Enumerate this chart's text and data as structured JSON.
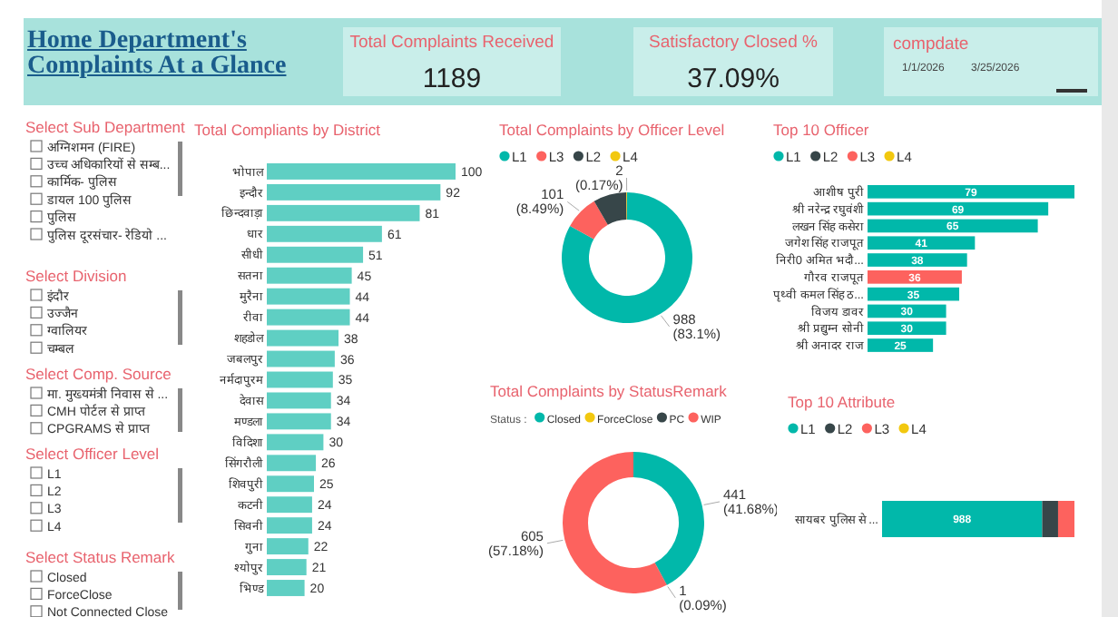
{
  "chart_data": [
    {
      "type": "other",
      "title": "Home Department's Complaints  At a Glance"
    },
    {
      "type": "other",
      "title": "Total Complaints Received",
      "annotations": [
        "1189"
      ]
    },
    {
      "type": "other",
      "title": "Satisfactory Closed %",
      "annotations": [
        "37.09%"
      ]
    },
    {
      "type": "other",
      "title": "compdate",
      "annotations": [
        "1/1/2026",
        "3/25/2026"
      ]
    },
    {
      "type": "other",
      "title": "Select Sub Department",
      "annotations": [
        "अग्निशमन (FIRE)",
        "उच्च अधिकारियों से सम्ब...",
        "कार्मिक- पुलिस",
        "डायल 100 पुलिस",
        "पुलिस",
        "पुलिस दूरसंचार- रेडियो ..."
      ]
    },
    {
      "type": "other",
      "title": "Select Division",
      "annotations": [
        "इंदौर",
        "उज्जैन",
        "ग्वालियर",
        "चम्बल"
      ]
    },
    {
      "type": "other",
      "title": "Select Comp. Source",
      "annotations": [
        "मा. मुख्यमंत्री निवास से ...",
        "CMH पोर्टल से प्राप्त",
        "CPGRAMS से प्राप्त"
      ]
    },
    {
      "type": "other",
      "title": "Select Officer Level",
      "annotations": [
        "L1",
        "L2",
        "L3",
        "L4"
      ]
    },
    {
      "type": "other",
      "title": "Select Status Remark",
      "annotations": [
        "Closed",
        "ForceClose",
        "Not Connected Close"
      ]
    },
    {
      "type": "bar",
      "orientation": "horizontal",
      "title": "Total Compliants by District",
      "data_labels": true,
      "categories": [
        "भोपाल",
        "इन्दौर",
        "छिन्दवाड़ा",
        "धार",
        "सीधी",
        "सतना",
        "मुरैना",
        "रीवा",
        "शहडोल",
        "जबलपुर",
        "नर्मदापुरम",
        "देवास",
        "मण्डला",
        "विदिशा",
        "सिंगरौली",
        "शिवपुरी",
        "कटनी",
        "सिवनी",
        "गुना",
        "श्योपुर",
        "भिण्ड"
      ],
      "series": [
        {
          "color": "#5fcfc3",
          "values": [
            100,
            92,
            81,
            61,
            51,
            45,
            44,
            44,
            38,
            36,
            35,
            34,
            34,
            30,
            26,
            25,
            24,
            24,
            22,
            21,
            20
          ]
        }
      ]
    },
    {
      "type": "donut",
      "title": "Total Complaints by Officer Level",
      "legend": "top left",
      "categories": [
        "L1",
        "L3",
        "L2",
        "L4"
      ],
      "values": [
        988,
        101,
        98,
        2
      ],
      "colors": [
        "#01b8aa",
        "#fd625e",
        "#374649",
        "#f2c80f"
      ],
      "value_labels": [
        "988 (83.1%)",
        "101 (8.49%)",
        null,
        "2 (0.17%)"
      ]
    },
    {
      "type": "bar",
      "orientation": "horizontal",
      "stacked": true,
      "title": "Top 10 Officer",
      "legend": "top left",
      "data_labels": true,
      "categories": [
        "आशीष पुरी",
        "श्री नरेन्द्र रघुवंशी",
        "लखन सिंह कसेरा",
        "जगेश सिंह राजपूत",
        "निरी0 अमित भदौ...",
        "गौरव राजपूत",
        "पृथ्वी कमल सिंह ठ...",
        "विजय डावर",
        "श्री प्रद्युम्न सोनी",
        "श्री अनादर राज"
      ],
      "series": [
        {
          "name": "L1",
          "color": "#01b8aa",
          "values": [
            79,
            69,
            65,
            41,
            38,
            null,
            35,
            30,
            30,
            25
          ]
        },
        {
          "name": "L2",
          "color": "#374649",
          "values": [
            null,
            null,
            null,
            null,
            null,
            null,
            null,
            null,
            null,
            null
          ]
        },
        {
          "name": "L3",
          "color": "#fd625e",
          "values": [
            null,
            null,
            null,
            null,
            null,
            36,
            null,
            null,
            null,
            null
          ]
        },
        {
          "name": "L4",
          "color": "#f2c80f",
          "values": [
            null,
            null,
            null,
            null,
            null,
            null,
            null,
            null,
            null,
            null
          ]
        }
      ]
    },
    {
      "type": "donut",
      "title": "Total Complaints by StatusRemark",
      "legend": "top left",
      "legend_title": "Status :",
      "categories": [
        "Closed",
        "ForceClose",
        "PC",
        "WIP"
      ],
      "values": [
        441,
        null,
        1,
        605
      ],
      "colors": [
        "#01b8aa",
        "#f2c80f",
        "#374649",
        "#fd625e"
      ],
      "value_labels": [
        "441 (41.68%)",
        null,
        "1 (0.09%)",
        "605 (57.18%)"
      ]
    },
    {
      "type": "bar",
      "orientation": "horizontal",
      "stacked": true,
      "title": "Top 10 Attribute",
      "legend": "top left",
      "categories": [
        "सायबर पुलिस से ..."
      ],
      "series": [
        {
          "name": "L1",
          "color": "#01b8aa",
          "values": [
            988
          ],
          "value_labels": [
            "988"
          ]
        },
        {
          "name": "L2",
          "color": "#374649",
          "values": [
            98
          ]
        },
        {
          "name": "L3",
          "color": "#fd625e",
          "values": [
            101
          ]
        },
        {
          "name": "L4",
          "color": "#f2c80f",
          "values": [
            null
          ]
        }
      ]
    }
  ]
}
